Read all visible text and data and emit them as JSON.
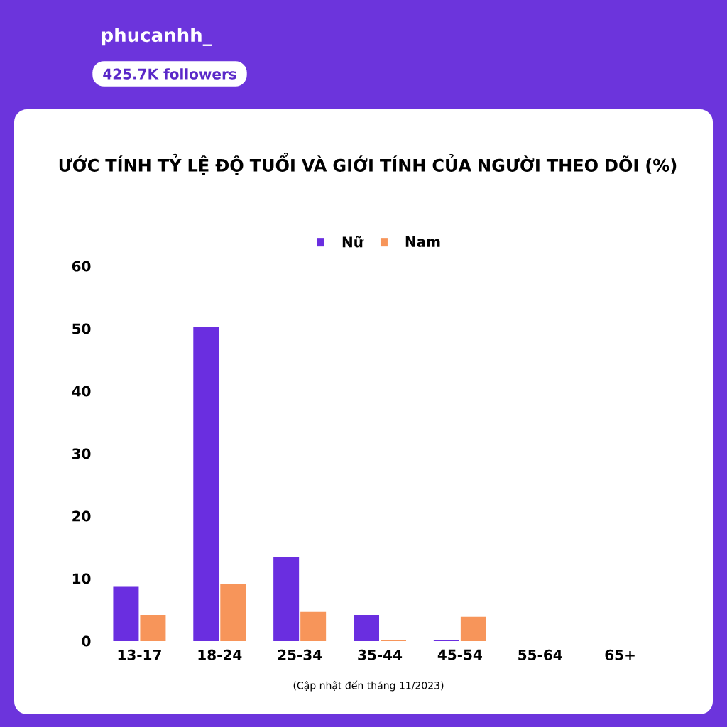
{
  "chart_data": {
    "type": "bar",
    "title": "ƯỚC TÍNH TỶ LỆ ĐỘ TUỔI VÀ GIỚI TÍNH CỦA NGƯỜI THEO DÕI (%)",
    "categories": [
      "13-17",
      "18-24",
      "25-34",
      "35-44",
      "45-54",
      "55-64",
      "65+"
    ],
    "series": [
      {
        "name": "Nữ",
        "color": "#6a2ee0",
        "values": [
          8.7,
          50.3,
          13.5,
          4.2,
          0.2,
          0,
          0
        ]
      },
      {
        "name": "Nam",
        "color": "#f7955a",
        "values": [
          4.2,
          9.1,
          4.7,
          0.2,
          3.9,
          0,
          0
        ]
      }
    ],
    "ylim": [
      0,
      60
    ],
    "yticks": [
      0,
      10,
      20,
      30,
      40,
      50,
      60
    ],
    "grid": false,
    "legend": "top",
    "annotations": [
      "phucanhh_",
      "425.7K followers",
      "(Cập nhật đến tháng 11/2023)"
    ]
  }
}
